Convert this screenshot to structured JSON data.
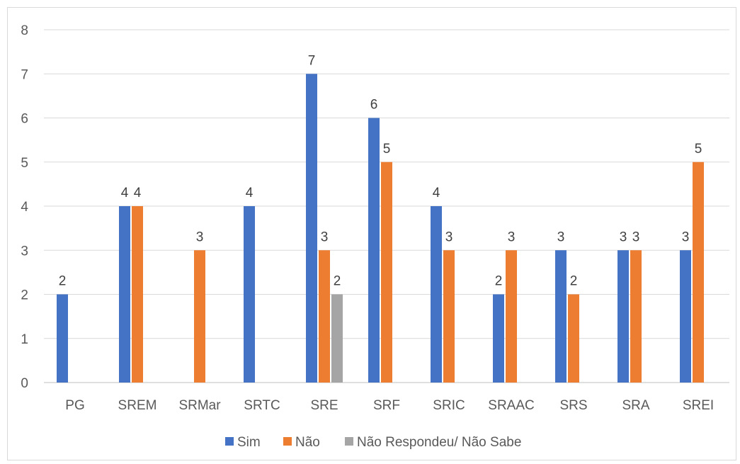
{
  "chart_data": {
    "type": "bar",
    "categories": [
      "PG",
      "SREM",
      "SRMar",
      "SRTC",
      "SRE",
      "SRF",
      "SRIC",
      "SRAAC",
      "SRS",
      "SRA",
      "SREI"
    ],
    "series": [
      {
        "name": "Sim",
        "color": "#4472c4",
        "values": [
          2,
          4,
          null,
          4,
          7,
          6,
          4,
          2,
          3,
          3,
          3
        ]
      },
      {
        "name": "Não",
        "color": "#ed7d31",
        "values": [
          null,
          4,
          3,
          null,
          3,
          5,
          3,
          3,
          2,
          3,
          5
        ]
      },
      {
        "name": "Não Respondeu/ Não Sabe",
        "color": "#a5a5a5",
        "values": [
          null,
          null,
          null,
          null,
          2,
          null,
          null,
          null,
          null,
          null,
          null
        ]
      }
    ],
    "yticks": [
      "0",
      "1",
      "2",
      "3",
      "4",
      "5",
      "6",
      "7",
      "8"
    ],
    "ylim": [
      0,
      8
    ],
    "grid": true,
    "legend_position": "bottom"
  }
}
